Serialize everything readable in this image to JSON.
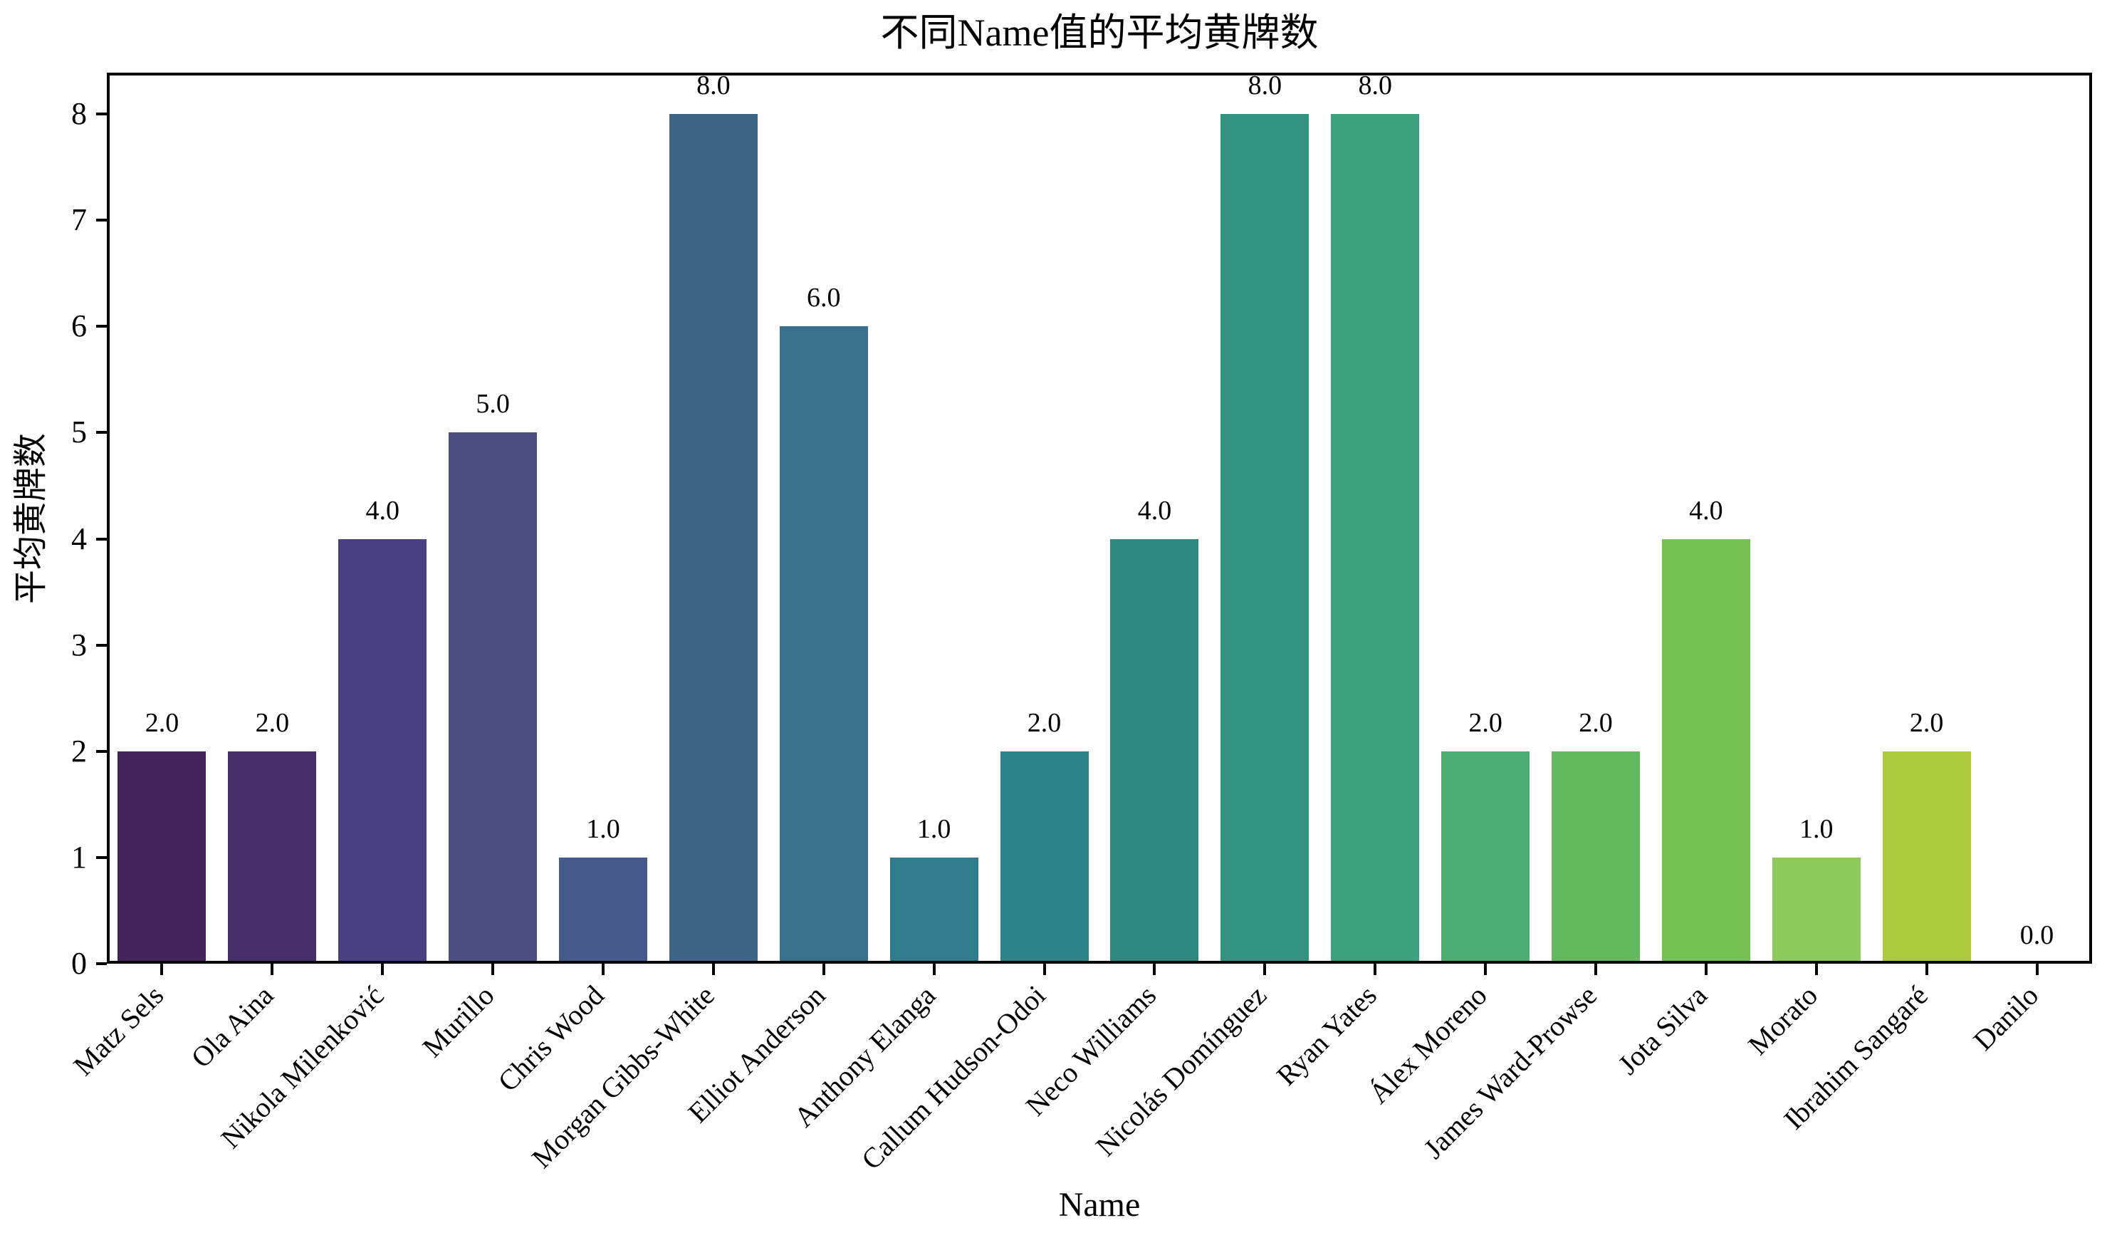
{
  "chart_data": {
    "type": "bar",
    "title": "不同Name值的平均黄牌数",
    "xlabel": "Name",
    "ylabel": "平均黄牌数",
    "categories": [
      "Matz Sels",
      "Ola Aina",
      "Nikola Milenković",
      "Murillo",
      "Chris Wood",
      "Morgan Gibbs-White",
      "Elliot Anderson",
      "Anthony Elanga",
      "Callum Hudson-Odoi",
      "Neco Williams",
      "Nicolás Domínguez",
      "Ryan Yates",
      "Álex Moreno",
      "James Ward-Prowse",
      "Jota Silva",
      "Morato",
      "Ibrahim Sangaré",
      "Danilo"
    ],
    "values": [
      2.0,
      2.0,
      4.0,
      5.0,
      1.0,
      8.0,
      6.0,
      1.0,
      2.0,
      4.0,
      8.0,
      8.0,
      2.0,
      2.0,
      4.0,
      1.0,
      2.0,
      0.0
    ],
    "value_labels": [
      "2.0",
      "2.0",
      "4.0",
      "5.0",
      "1.0",
      "8.0",
      "6.0",
      "1.0",
      "2.0",
      "4.0",
      "8.0",
      "8.0",
      "2.0",
      "2.0",
      "4.0",
      "1.0",
      "2.0",
      "0.0"
    ],
    "bar_colors": [
      "#45245e",
      "#472f6a",
      "#484083",
      "#4a4e80",
      "#455a8a",
      "#3e6488",
      "#39718c",
      "#307c8c",
      "#2d8487",
      "#2e8a80",
      "#339381",
      "#3aa17c",
      "#4dac72",
      "#62b95e",
      "#75c155",
      "#8dca5b",
      "#adc93f",
      "#cdd64a"
    ],
    "yticks": [
      0,
      1,
      2,
      3,
      4,
      5,
      6,
      7,
      8
    ],
    "ylim": [
      0,
      8.39
    ],
    "grid": false,
    "legend": null,
    "axis_color": "#000000",
    "text_color": "#000000",
    "background": "#ffffff"
  }
}
